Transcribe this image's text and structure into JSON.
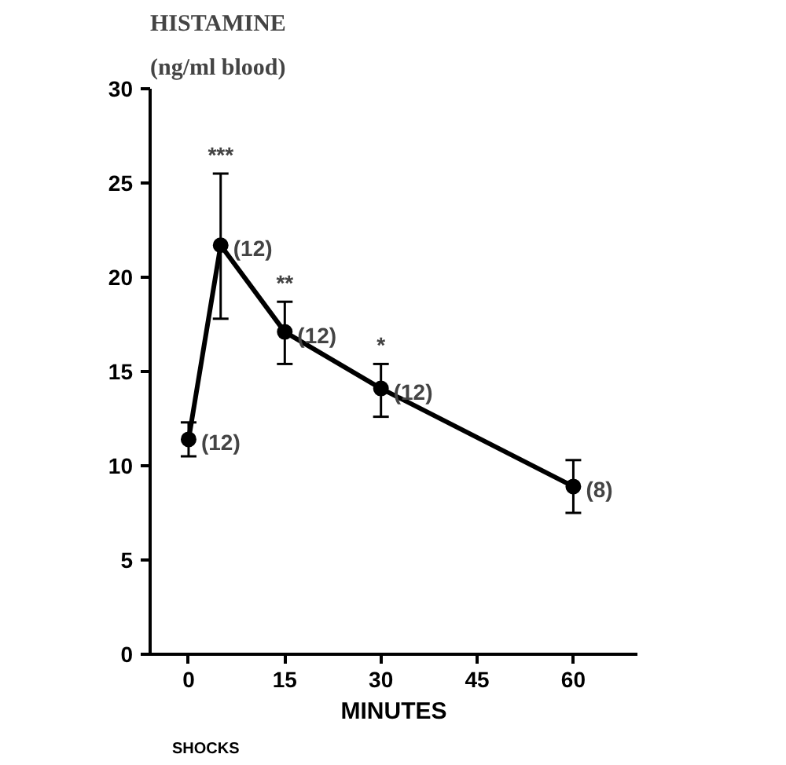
{
  "chart_data": {
    "type": "line",
    "title": "HISTAMINE",
    "subtitle": "(ng/ml blood)",
    "xlabel": "MINUTES",
    "x": [
      0,
      5,
      15,
      30,
      60
    ],
    "values": [
      11.4,
      21.7,
      17.1,
      14.1,
      8.9
    ],
    "errors": [
      [
        10.5,
        12.3
      ],
      [
        17.8,
        25.5
      ],
      [
        15.4,
        18.7
      ],
      [
        12.6,
        15.4
      ],
      [
        7.5,
        10.3
      ]
    ],
    "color": "#000000",
    "marker": "circle",
    "line_style": "solid",
    "grid": false,
    "xlim": [
      -6,
      70
    ],
    "ylim": [
      0,
      30
    ],
    "xticks": [
      0,
      15,
      30,
      45,
      60
    ],
    "yticks": [
      0,
      5,
      10,
      15,
      20,
      25,
      30
    ],
    "annotations": [
      {
        "text": "(12)",
        "x": 0,
        "y": 11.4
      },
      {
        "text": "(12)",
        "x": 5,
        "y": 21.7
      },
      {
        "text": "(12)",
        "x": 15,
        "y": 17.1
      },
      {
        "text": "(12)",
        "x": 30,
        "y": 14.1
      },
      {
        "text": "(8)",
        "x": 60,
        "y": 8.9
      },
      {
        "text": "***",
        "x": 5,
        "y": 25.5
      },
      {
        "text": "**",
        "x": 15,
        "y": 18.7
      },
      {
        "text": "*",
        "x": 30,
        "y": 15.4
      },
      "SHOCKS"
    ]
  }
}
